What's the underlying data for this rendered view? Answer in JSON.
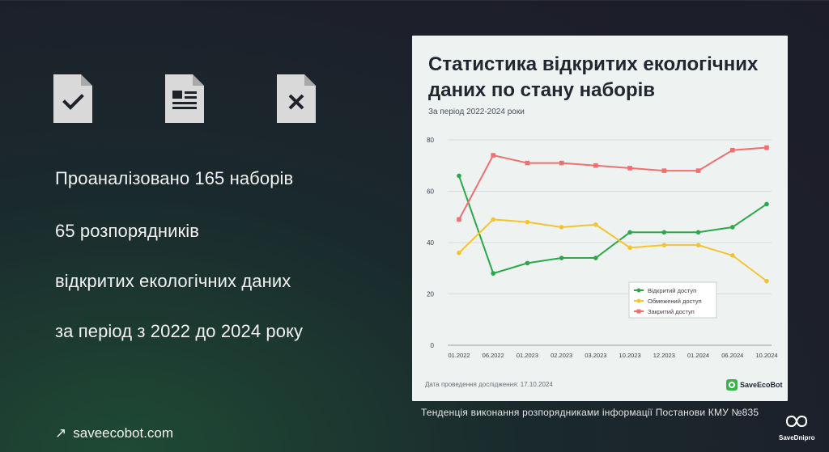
{
  "left_panel": {
    "icons": [
      "document-check-icon",
      "document-text-icon",
      "document-cross-icon"
    ],
    "lines": [
      "Проаналізовано 165 наборів",
      "65 розпорядників",
      "відкритих екологічних даних",
      "за період з 2022 до 2024 року"
    ],
    "link": "saveecobot.com"
  },
  "card": {
    "title_line1": "Статистика відкритих екологічних",
    "title_line2": "даних по стану наборів",
    "subtitle": "За період 2022-2024 роки",
    "footer": "Дата проведення дослідження: 17.10.2024",
    "logo_text": "SaveEcoBot"
  },
  "caption": "Тенденція виконання розпорядниками інформації Постанови КМУ №835",
  "brand": {
    "name": "SaveDnipro"
  },
  "chart_data": {
    "type": "line",
    "categories": [
      "01.2022",
      "06.2022",
      "01.2023",
      "02.2023",
      "03.2023",
      "10.2023",
      "12.2023",
      "01.2024",
      "06.2024",
      "10.2024"
    ],
    "ylim": [
      0,
      80
    ],
    "yticks": [
      0,
      20,
      40,
      60,
      80
    ],
    "grid": true,
    "legend_position": "right",
    "series": [
      {
        "name": "Відкритий доступ",
        "color": "#2aa84a",
        "values": [
          66,
          28,
          32,
          34,
          34,
          44,
          44,
          44,
          46,
          55
        ]
      },
      {
        "name": "Обмежений доступ",
        "color": "#f2c530",
        "values": [
          36,
          49,
          48,
          46,
          47,
          38,
          39,
          39,
          35,
          25
        ]
      },
      {
        "name": "Закритий доступ",
        "color": "#f07070",
        "values": [
          49,
          74,
          71,
          71,
          70,
          69,
          68,
          68,
          76,
          77
        ]
      }
    ]
  }
}
